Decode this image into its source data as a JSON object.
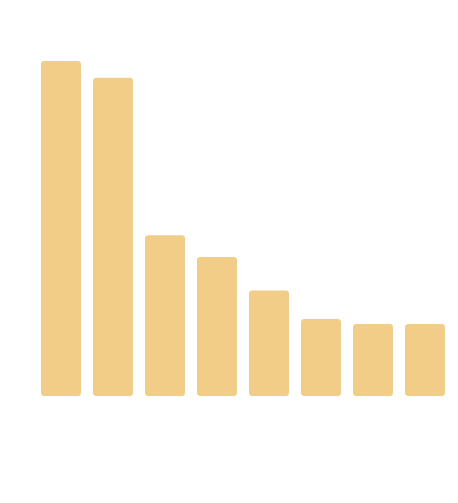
{
  "chart_data": {
    "type": "bar",
    "categories": [
      "",
      "",
      "",
      "",
      "",
      "",
      "",
      ""
    ],
    "values": [
      100,
      95,
      48,
      41.5,
      31.5,
      23,
      21.5,
      21.5
    ],
    "ylim": [
      0,
      100
    ],
    "title": "",
    "xlabel": "",
    "ylabel": "",
    "grid": false,
    "legend": "none",
    "colors": {
      "bar": "#F2CD88",
      "background": "#FFFFFF"
    }
  }
}
